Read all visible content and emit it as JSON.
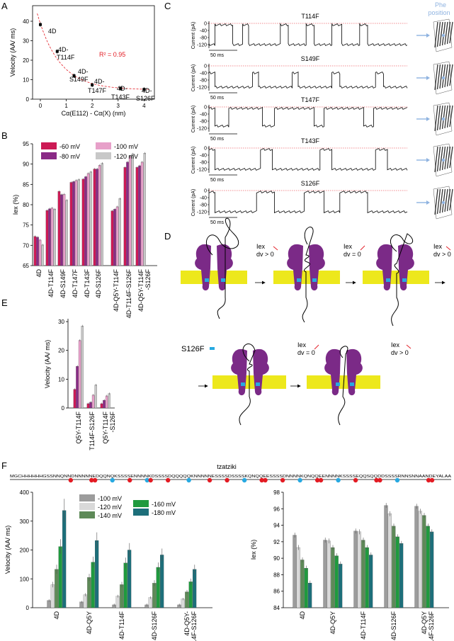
{
  "panel_labels": {
    "a": "A",
    "b": "B",
    "c": "C",
    "d": "D",
    "e": "E",
    "f": "F"
  },
  "colors": {
    "m60": "#cc1a55",
    "m80": "#8a2a86",
    "m100": "#e7a0c9",
    "m120": "#c8c8c8",
    "m100f": "#9c9c9c",
    "m120f": "#d9d9d9",
    "m140f": "#5e8a58",
    "m160f": "#1f9a3e",
    "m180f": "#1d6f7a",
    "purple": "#7b2a87",
    "yellow": "#ede81c",
    "blue_site": "#27a9e1",
    "red_dot": "#e31b23",
    "arrow_blue": "#8fb3e0"
  },
  "panel_a": {
    "xlabel": "Cα(E112) - Cα(X) (nm)",
    "ylabel": "Velocity (AA/ ms)",
    "r2": "R² = 0.95",
    "xticks": [
      "0",
      "1",
      "2",
      "3",
      "4"
    ],
    "yticks": [
      "0",
      "10",
      "20",
      "30",
      "40"
    ]
  },
  "panel_b": {
    "ylabel": "Iex (%)",
    "yticks": [
      "65",
      "70",
      "75",
      "80",
      "85",
      "90",
      "95"
    ],
    "legend": [
      "-60  mV",
      "-100 mV",
      "-80 mV",
      "-120 mV"
    ],
    "cats": [
      "4D",
      "4D-T114F",
      "4D-S149F",
      "4D-T147F",
      "4D-T143F",
      "4D-S126F",
      "4D-Q5Y-T114F",
      "4D-T114F-S126F",
      "4D-Q5Y-T114F"
    ],
    "cat_extra": "-S126F"
  },
  "panel_c": {
    "header": "Phe position",
    "traces": [
      "T114F",
      "S149F",
      "T147F",
      "T143F",
      "S126F"
    ],
    "ylabel": "Current (pA)",
    "scale": "50 ms",
    "yticks": [
      "0",
      "-40",
      "-80",
      "-120"
    ]
  },
  "panel_d": {
    "iex_label": "Iex",
    "dv_pos": "dv > 0",
    "dv_zero": "dv = 0",
    "s126f_label": "S126F"
  },
  "panel_e": {
    "ylabel": "Velocity (AA/ ms)",
    "yticks": [
      "0",
      "10",
      "20",
      "30"
    ],
    "cats": [
      "Q5Y-T114F",
      "T114F-S126F",
      "Q5Y-T114F"
    ],
    "cat_extra": "-S126F"
  },
  "panel_f": {
    "title": "tzatziki",
    "sequence": "MGCHHHHHHGSSNNQNNDNNNNNEDQQNQKSSSSENNNNKDSSSSDQQQQQKNNNNNESSSSDSSSSKQNQQEESSSSDNNNNKQNQQEENNNNKSSSSEQQSQQDDSSSSRNNSNNAANDEYALAA",
    "vel_ylabel": "Velocity (AA/ ms)",
    "vel_yticks": [
      "0",
      "100",
      "200",
      "300",
      "400"
    ],
    "iex_ylabel": "Iex (%)",
    "iex_yticks": [
      "84",
      "86",
      "88",
      "90",
      "92",
      "94",
      "96",
      "98"
    ],
    "legend": [
      "-100 mV",
      "-160 mV",
      "-120 mV",
      "-180 mV",
      "-140 mV"
    ],
    "cats": [
      "4D",
      "4D-Q5Y",
      "4D-T114F",
      "4D-S126F",
      "4D-Q5Y-"
    ],
    "cat_extra_vel": "T114F-S126F",
    "cats_iex": [
      "4D",
      "4D-Q5Y",
      "4D-T114F",
      "4D-S126F",
      "4D-Q5Y"
    ],
    "cat_extra_iex": "-T114F-S126F"
  },
  "chart_data": [
    {
      "type": "scatter",
      "title": "",
      "xlabel": "Cα(E112) - Cα(X) (nm)",
      "ylabel": "Velocity (AA/ ms)",
      "xlim": [
        -0.3,
        4.4
      ],
      "ylim": [
        0,
        48
      ],
      "points": [
        {
          "label": "4D",
          "x": 0.0,
          "y": 38.3
        },
        {
          "label": "4D-T114F",
          "x": 0.65,
          "y": 24.5
        },
        {
          "label": "4D-S149F",
          "x": 1.3,
          "y": 12.0
        },
        {
          "label": "4D-T147F",
          "x": 2.0,
          "y": 7.3
        },
        {
          "label": "4D-T143F",
          "x": 3.1,
          "y": 5.5
        },
        {
          "label": "4D-S126F",
          "x": 4.0,
          "y": 5.0
        }
      ],
      "fit": "exponential decay",
      "annotation": "R² = 0.95"
    },
    {
      "type": "bar",
      "ylabel": "Iex (%)",
      "ylim": [
        65,
        95
      ],
      "categories": [
        "4D",
        "4D-T114F",
        "4D-S149F",
        "4D-T147F",
        "4D-T143F",
        "4D-S126F",
        "4D-Q5Y-T114F",
        "4D-T114F-S126F",
        "4D-Q5Y-T114F-S126F"
      ],
      "series": [
        {
          "name": "-60  mV",
          "values": [
            72.2,
            78.6,
            83.3,
            85.5,
            86.3,
            88.8,
            78.5,
            89.2,
            89.2
          ]
        },
        {
          "name": "-80 mV",
          "values": [
            72.0,
            79.0,
            82.5,
            85.7,
            86.9,
            88.8,
            78.9,
            90.5,
            89.6
          ]
        },
        {
          "name": "-100 mV",
          "values": [
            71.3,
            79.2,
            82.6,
            86.0,
            87.7,
            89.7,
            79.5,
            91.9,
            90.5
          ]
        },
        {
          "name": "-120 mV",
          "values": [
            70.1,
            78.9,
            81.1,
            86.2,
            88.1,
            90.2,
            81.5,
            92.5,
            92.7
          ]
        }
      ]
    },
    {
      "type": "bar",
      "ylabel": "Velocity (AA/ ms)",
      "ylim": [
        0,
        30
      ],
      "categories": [
        "Q5Y-T114F",
        "T114F-S126F",
        "Q5Y-T114F-S126F"
      ],
      "series": [
        {
          "name": "-60  mV",
          "values": [
            6.5,
            1.5,
            1.5
          ]
        },
        {
          "name": "-80 mV",
          "values": [
            14.5,
            2.0,
            2.7
          ]
        },
        {
          "name": "-100 mV",
          "values": [
            23.5,
            4.5,
            4.2
          ]
        },
        {
          "name": "-120 mV",
          "values": [
            28.5,
            8.0,
            5.0
          ]
        }
      ]
    },
    {
      "type": "bar",
      "ylabel": "Velocity (AA/ ms)",
      "ylim": [
        0,
        400
      ],
      "categories": [
        "4D",
        "4D-Q5Y",
        "4D-T114F",
        "4D-S126F",
        "4D-Q5Y-T114F-S126F"
      ],
      "series": [
        {
          "name": "-100 mV",
          "values": [
            25,
            20,
            10,
            10,
            10
          ]
        },
        {
          "name": "-120 mV",
          "values": [
            80,
            45,
            40,
            35,
            30
          ]
        },
        {
          "name": "-140 mV",
          "values": [
            133,
            105,
            80,
            85,
            55
          ]
        },
        {
          "name": "-160 mV",
          "values": [
            212,
            158,
            155,
            140,
            90
          ]
        },
        {
          "name": "-180 mV",
          "values": [
            337,
            233,
            200,
            183,
            133
          ]
        }
      ]
    },
    {
      "type": "bar",
      "ylabel": "Iex (%)",
      "ylim": [
        84,
        98
      ],
      "categories": [
        "4D",
        "4D-Q5Y",
        "4D-T114F",
        "4D-S126F",
        "4D-Q5Y-T114F-S126F"
      ],
      "series": [
        {
          "name": "-100 mV",
          "values": [
            92.8,
            92.2,
            93.3,
            96.4,
            96.3
          ]
        },
        {
          "name": "-120 mV",
          "values": [
            91.3,
            92.1,
            93.2,
            95.4,
            95.7
          ]
        },
        {
          "name": "-140 mV",
          "values": [
            89.8,
            91.3,
            92.2,
            93.9,
            95.2
          ]
        },
        {
          "name": "-160 mV",
          "values": [
            88.8,
            90.3,
            91.3,
            92.6,
            93.9
          ]
        },
        {
          "name": "-180 mV",
          "values": [
            87.0,
            89.3,
            90.4,
            91.8,
            93.2
          ]
        }
      ]
    }
  ]
}
